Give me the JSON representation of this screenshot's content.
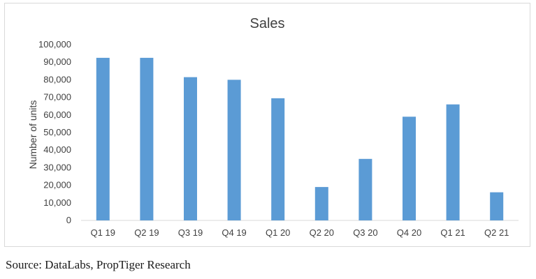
{
  "chart_data": {
    "type": "bar",
    "title": "Sales",
    "xlabel": "",
    "ylabel": "Number of units",
    "categories": [
      "Q1 19",
      "Q2 19",
      "Q3 19",
      "Q4 19",
      "Q1 20",
      "Q2 20",
      "Q3 20",
      "Q4 20",
      "Q1 21",
      "Q2 21"
    ],
    "values": [
      92500,
      92500,
      81500,
      80000,
      69500,
      19000,
      35000,
      59000,
      66000,
      16000
    ],
    "ylim": [
      0,
      100000
    ],
    "yticks": [
      "0",
      "10,000",
      "20,000",
      "30,000",
      "40,000",
      "50,000",
      "60,000",
      "70,000",
      "80,000",
      "90,000",
      "100,000"
    ],
    "grid": false,
    "legend": "none",
    "bar_color": "#5b9bd5"
  },
  "source_text": "Source: DataLabs, PropTiger Research"
}
